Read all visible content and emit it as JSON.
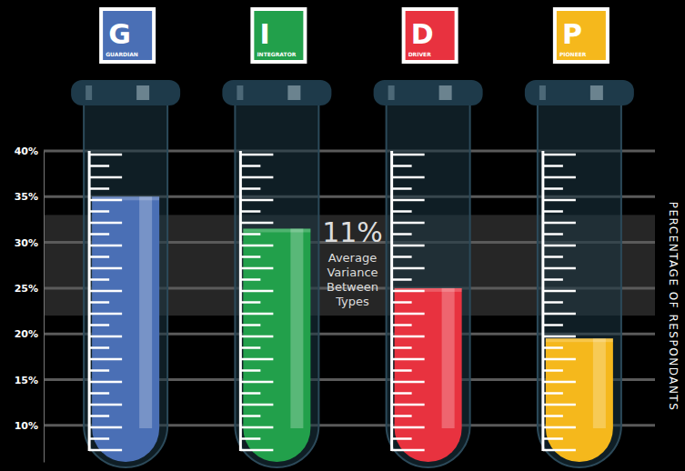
{
  "chart_data": {
    "type": "bar",
    "categories": [
      "GUARDIAN",
      "INTEGRATOR",
      "DRIVER",
      "PIONEER"
    ],
    "letters": [
      "G",
      "I",
      "D",
      "P"
    ],
    "values": [
      35,
      31.5,
      25,
      19.5
    ],
    "colors": [
      "#4a6fb5",
      "#22a04b",
      "#e8323f",
      "#f5b81c"
    ],
    "ylim": [
      6,
      40
    ],
    "yticks": [
      {
        "value": 10,
        "label": "10%"
      },
      {
        "value": 15,
        "label": "15%"
      },
      {
        "value": 20,
        "label": "20%"
      },
      {
        "value": 25,
        "label": "25%"
      },
      {
        "value": 30,
        "label": "30%"
      },
      {
        "value": 35,
        "label": "35%"
      },
      {
        "value": 40,
        "label": "40%"
      }
    ],
    "y_label": "PERCENTAGE OF RESPONDANTS",
    "band": [
      22,
      33
    ],
    "annotations": [
      {
        "label": "11%",
        "text": "Average Variance Between Types"
      }
    ],
    "grid": true
  }
}
